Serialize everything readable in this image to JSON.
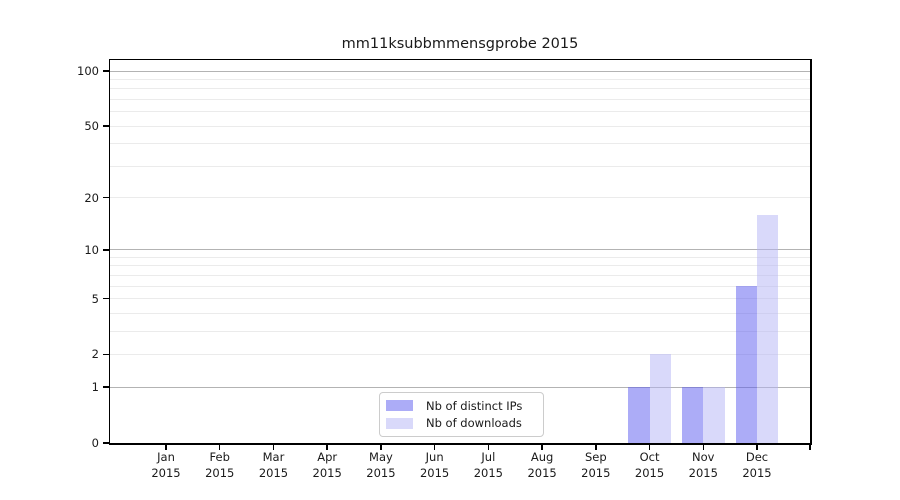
{
  "chart_data": {
    "type": "bar",
    "title": "mm11ksubbmmensgprobe 2015",
    "categories": [
      "Jan",
      "Feb",
      "Mar",
      "Apr",
      "May",
      "Jun",
      "Jul",
      "Aug",
      "Sep",
      "Oct",
      "Nov",
      "Dec"
    ],
    "x_tick_sublabel": "2015",
    "series": [
      {
        "name": "Nb of distinct IPs",
        "color": "rgba(90,90,240,0.5)",
        "values": [
          0,
          0,
          0,
          0,
          0,
          0,
          0,
          0,
          0,
          1,
          1,
          6
        ]
      },
      {
        "name": "Nb of downloads",
        "color": "rgba(180,180,245,0.5)",
        "values": [
          0,
          0,
          0,
          0,
          0,
          0,
          0,
          0,
          0,
          2,
          1,
          16
        ]
      }
    ],
    "xlabel": "",
    "ylabel": "",
    "y_scale": "log1p",
    "ylim": [
      0,
      115
    ],
    "y_ticks": [
      0,
      1,
      2,
      5,
      10,
      20,
      50,
      100
    ],
    "y_major_gridlines": [
      1,
      10,
      100
    ],
    "y_minor_gridlines": [
      2,
      3,
      4,
      5,
      6,
      7,
      8,
      9,
      20,
      30,
      40,
      50,
      60,
      70,
      80,
      90
    ],
    "grid": "on",
    "legend_position": "lower center",
    "colors": {
      "major_grid": "#b3b3b3",
      "minor_grid": "#ebebeb",
      "spine": "#000000",
      "text": "#1a1a1a"
    }
  }
}
